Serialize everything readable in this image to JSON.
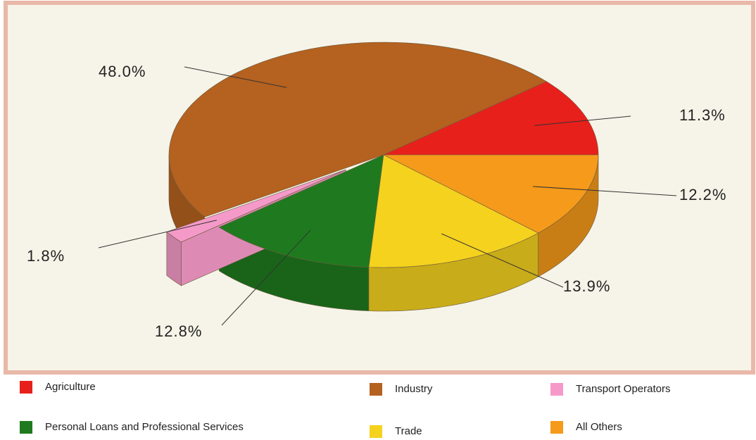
{
  "chart_data": {
    "type": "pie",
    "categories": [
      "Agriculture",
      "Industry",
      "Transport Operators",
      "Personal Loans and Professional Services",
      "Trade",
      "All Others"
    ],
    "values": [
      11.3,
      48.0,
      1.8,
      12.8,
      13.9,
      12.2
    ],
    "value_labels": [
      "11.3%",
      "48.0%",
      "1.8%",
      "12.8%",
      "13.9%",
      "12.2%"
    ],
    "colors": [
      "#e8201c",
      "#b5611f",
      "#f59ac8",
      "#1f7a1f",
      "#f5d21e",
      "#f59a1a"
    ],
    "legend": "bottom"
  }
}
